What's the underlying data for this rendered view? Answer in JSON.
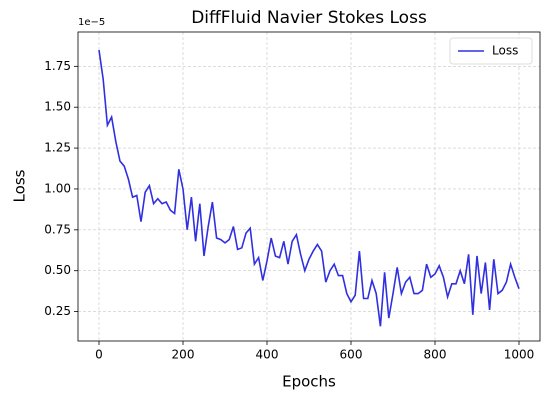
{
  "chart_data": {
    "type": "line",
    "title": "DiffFluid Navier Stokes Loss",
    "xlabel": "Epochs",
    "ylabel": "Loss",
    "y_offset_label": "1e−5",
    "x": [
      0,
      10,
      20,
      30,
      40,
      50,
      60,
      70,
      80,
      90,
      100,
      110,
      120,
      130,
      140,
      150,
      160,
      170,
      180,
      190,
      200,
      210,
      220,
      230,
      240,
      250,
      260,
      270,
      280,
      290,
      300,
      310,
      320,
      330,
      340,
      350,
      360,
      370,
      380,
      390,
      400,
      410,
      420,
      430,
      440,
      450,
      460,
      470,
      480,
      490,
      500,
      510,
      520,
      530,
      540,
      550,
      560,
      570,
      580,
      590,
      600,
      610,
      620,
      630,
      640,
      650,
      660,
      670,
      680,
      690,
      700,
      710,
      720,
      730,
      740,
      750,
      760,
      770,
      780,
      790,
      800,
      810,
      820,
      830,
      840,
      850,
      860,
      870,
      880,
      890,
      900,
      910,
      920,
      930,
      940,
      950,
      960,
      970,
      980,
      990,
      1000
    ],
    "series": [
      {
        "name": "Loss",
        "color": "#3030e0",
        "values": [
          1.85,
          1.67,
          1.39,
          1.44,
          1.29,
          1.17,
          1.14,
          1.06,
          0.95,
          0.96,
          0.8,
          0.98,
          1.02,
          0.91,
          0.94,
          0.91,
          0.92,
          0.87,
          0.85,
          1.12,
          1.0,
          0.75,
          0.95,
          0.68,
          0.91,
          0.59,
          0.77,
          0.92,
          0.7,
          0.69,
          0.67,
          0.69,
          0.77,
          0.63,
          0.64,
          0.73,
          0.76,
          0.54,
          0.58,
          0.44,
          0.56,
          0.7,
          0.59,
          0.58,
          0.68,
          0.54,
          0.68,
          0.72,
          0.6,
          0.5,
          0.57,
          0.62,
          0.66,
          0.62,
          0.43,
          0.5,
          0.54,
          0.47,
          0.47,
          0.36,
          0.31,
          0.35,
          0.62,
          0.33,
          0.33,
          0.44,
          0.36,
          0.16,
          0.49,
          0.21,
          0.36,
          0.52,
          0.36,
          0.43,
          0.46,
          0.36,
          0.36,
          0.38,
          0.54,
          0.46,
          0.48,
          0.53,
          0.46,
          0.34,
          0.42,
          0.42,
          0.5,
          0.42,
          0.6,
          0.23,
          0.59,
          0.36,
          0.55,
          0.26,
          0.57,
          0.36,
          0.38,
          0.43,
          0.54,
          0.46,
          0.39
        ]
      }
    ],
    "xlim": [
      -50,
      1050
    ],
    "xticks": [
      0,
      200,
      400,
      600,
      800,
      1000
    ],
    "ylim": [
      0.07,
      1.96
    ],
    "yticks": [
      {
        "value": 0.25,
        "label": "0.25"
      },
      {
        "value": 0.5,
        "label": "0.50"
      },
      {
        "value": 0.75,
        "label": "0.75"
      },
      {
        "value": 1,
        "label": "1.00"
      },
      {
        "value": 1.25,
        "label": "1.25"
      },
      {
        "value": 1.5,
        "label": "1.50"
      },
      {
        "value": 1.75,
        "label": "1.75"
      }
    ],
    "grid": true,
    "legend": "upper right"
  }
}
